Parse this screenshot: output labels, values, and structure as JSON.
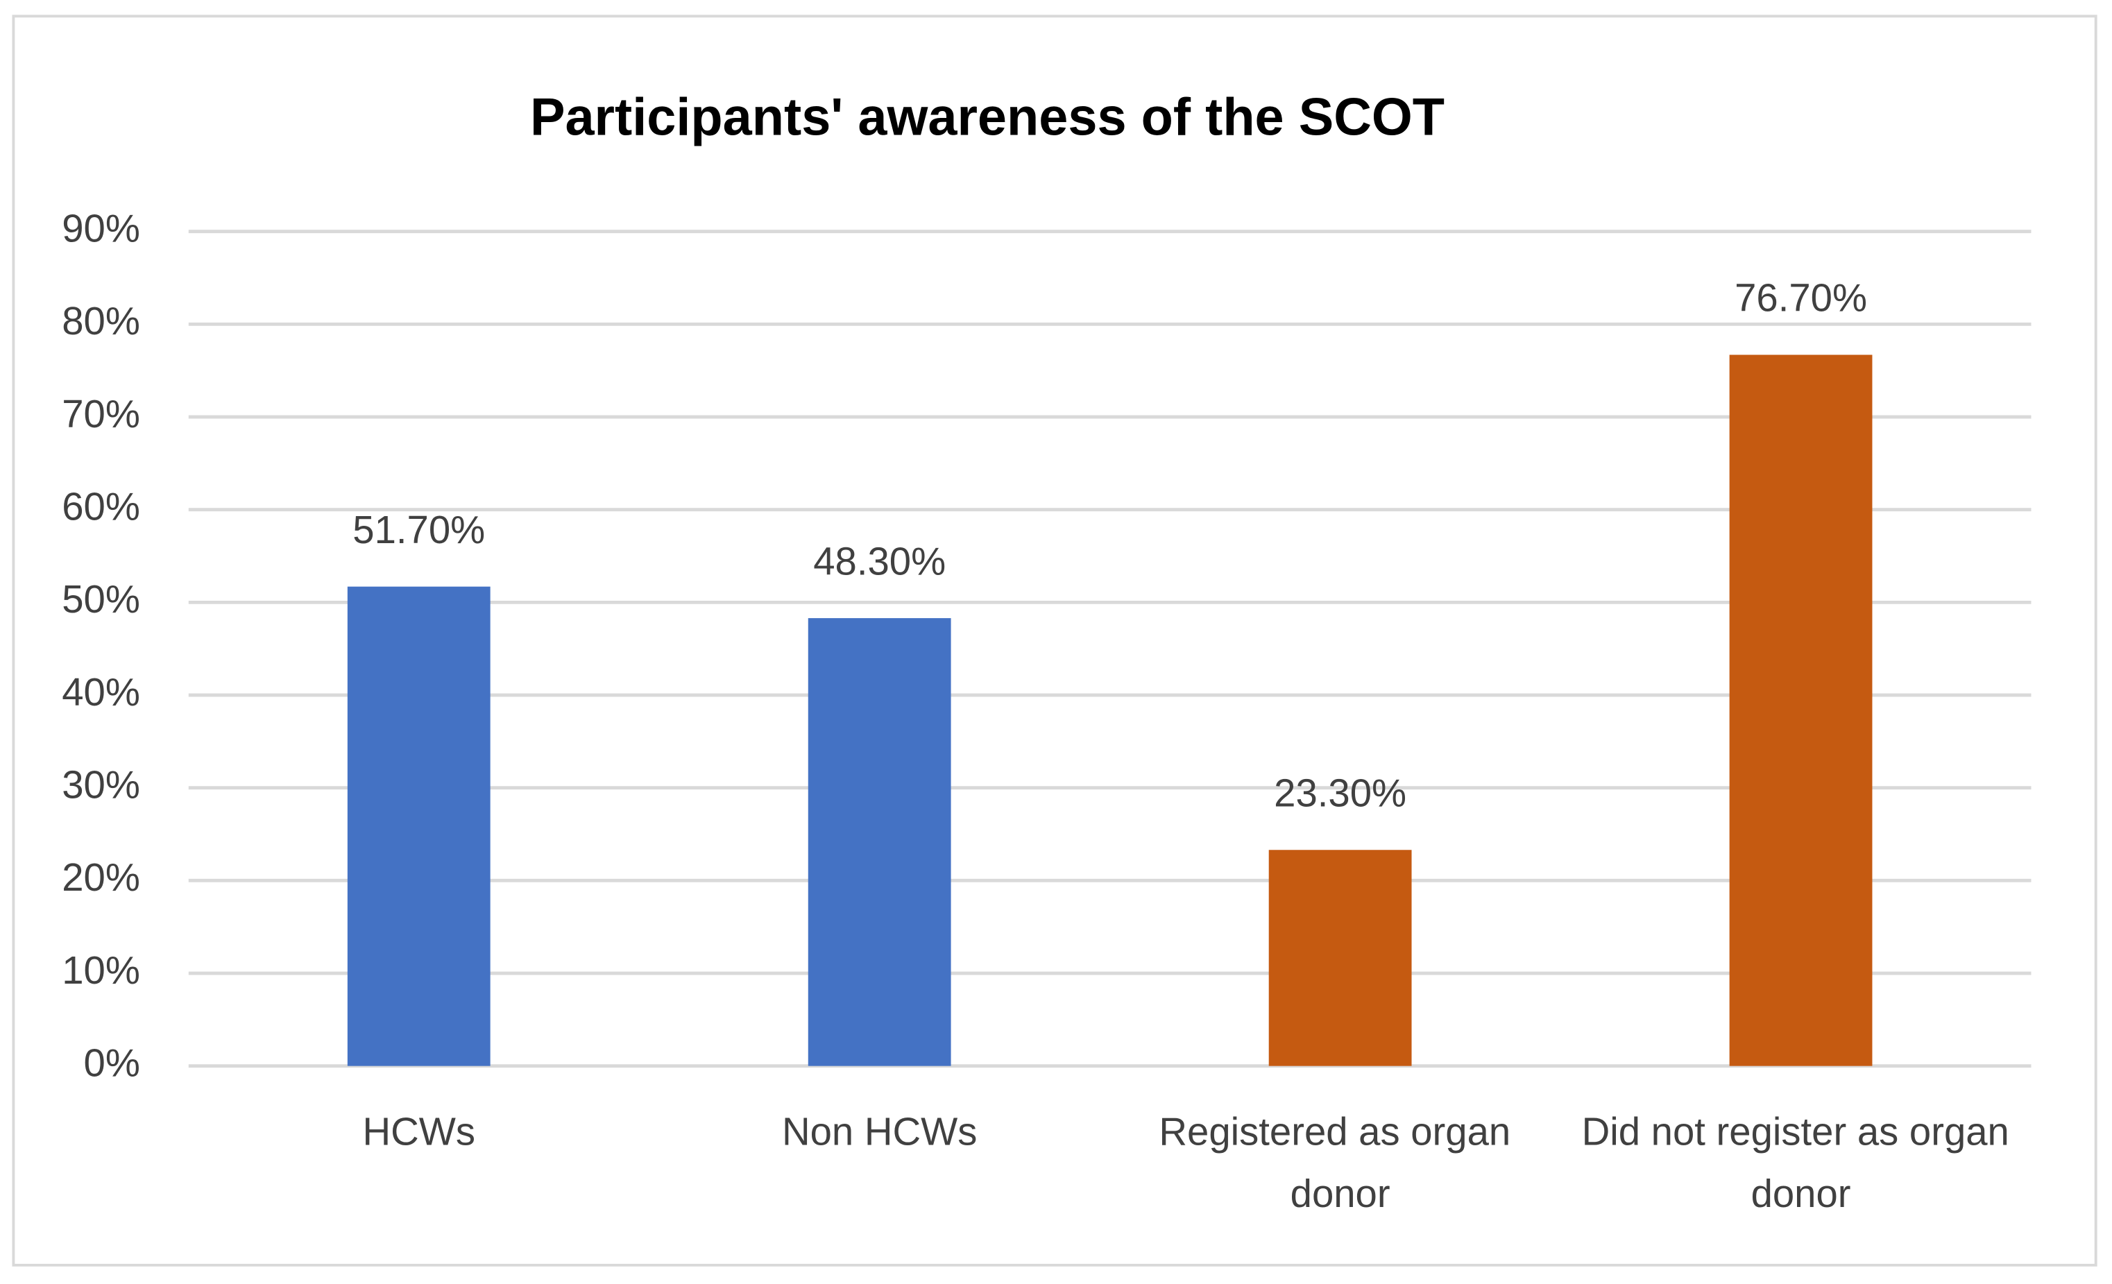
{
  "chart_data": {
    "type": "bar",
    "title": "Participants' awareness of the SCOT",
    "categories": [
      "HCWs",
      "Non HCWs",
      "Registered as organ donor",
      "Did not register as organ donor"
    ],
    "values": [
      51.7,
      48.3,
      23.3,
      76.7
    ],
    "value_labels": [
      "51.70%",
      "48.30%",
      "23.30%",
      "76.70%"
    ],
    "colors": [
      "#4472c4",
      "#4472c4",
      "#c55a11",
      "#c55a11"
    ],
    "ylim": [
      0,
      90
    ],
    "yticks": [
      {
        "value": 0,
        "label": "0%"
      },
      {
        "value": 10,
        "label": "10%"
      },
      {
        "value": 20,
        "label": "20%"
      },
      {
        "value": 30,
        "label": "30%"
      },
      {
        "value": 40,
        "label": "40%"
      },
      {
        "value": 50,
        "label": "50%"
      },
      {
        "value": 60,
        "label": "60%"
      },
      {
        "value": 70,
        "label": "70%"
      },
      {
        "value": 80,
        "label": "80%"
      },
      {
        "value": 90,
        "label": "90%"
      }
    ],
    "grid": true
  }
}
